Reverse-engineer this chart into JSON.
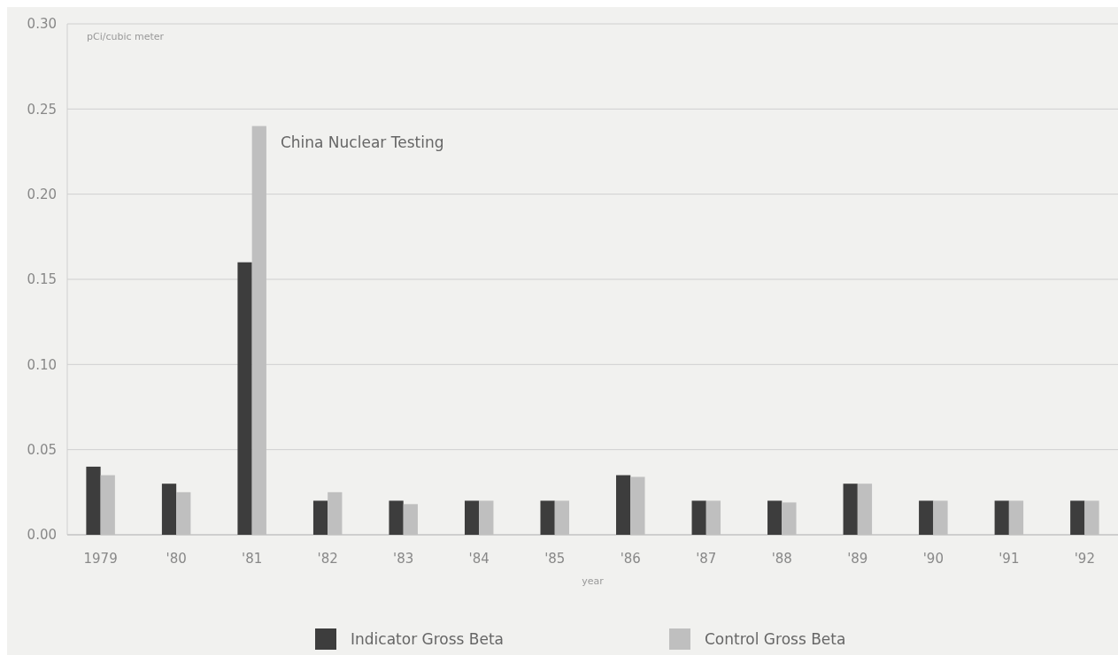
{
  "chart_data": {
    "type": "bar",
    "ylabel": "pCi/cubic meter",
    "xlabel": "year",
    "categories": [
      "1979",
      "'80",
      "'81",
      "'82",
      "'83",
      "'84",
      "'85",
      "'86",
      "'87",
      "'88",
      "'89",
      "'90",
      "'91",
      "'92"
    ],
    "series": [
      {
        "name": "Indicator Gross Beta",
        "color": "#3d3d3d",
        "values": [
          0.04,
          0.03,
          0.16,
          0.02,
          0.02,
          0.02,
          0.02,
          0.035,
          0.02,
          0.02,
          0.03,
          0.02,
          0.02,
          0.02
        ]
      },
      {
        "name": "Control Gross Beta",
        "color": "#bfbfbf",
        "values": [
          0.035,
          0.025,
          0.24,
          0.025,
          0.018,
          0.02,
          0.02,
          0.034,
          0.02,
          0.019,
          0.03,
          0.02,
          0.02,
          0.02
        ]
      }
    ],
    "ylim": [
      0,
      0.3
    ],
    "yticks": [
      {
        "value": 0,
        "label": "0.00"
      },
      {
        "value": 0.05,
        "label": "0.05"
      },
      {
        "value": 0.1,
        "label": "0.10"
      },
      {
        "value": 0.15,
        "label": "0.15"
      },
      {
        "value": 0.2,
        "label": "0.20"
      },
      {
        "value": 0.25,
        "label": "0.25"
      },
      {
        "value": 0.3,
        "label": "0.30"
      }
    ],
    "grid": "y",
    "legend": "bottom",
    "annotations": [
      {
        "text": "China Nuclear Testing",
        "x": "'81",
        "y": 0.24
      }
    ]
  }
}
